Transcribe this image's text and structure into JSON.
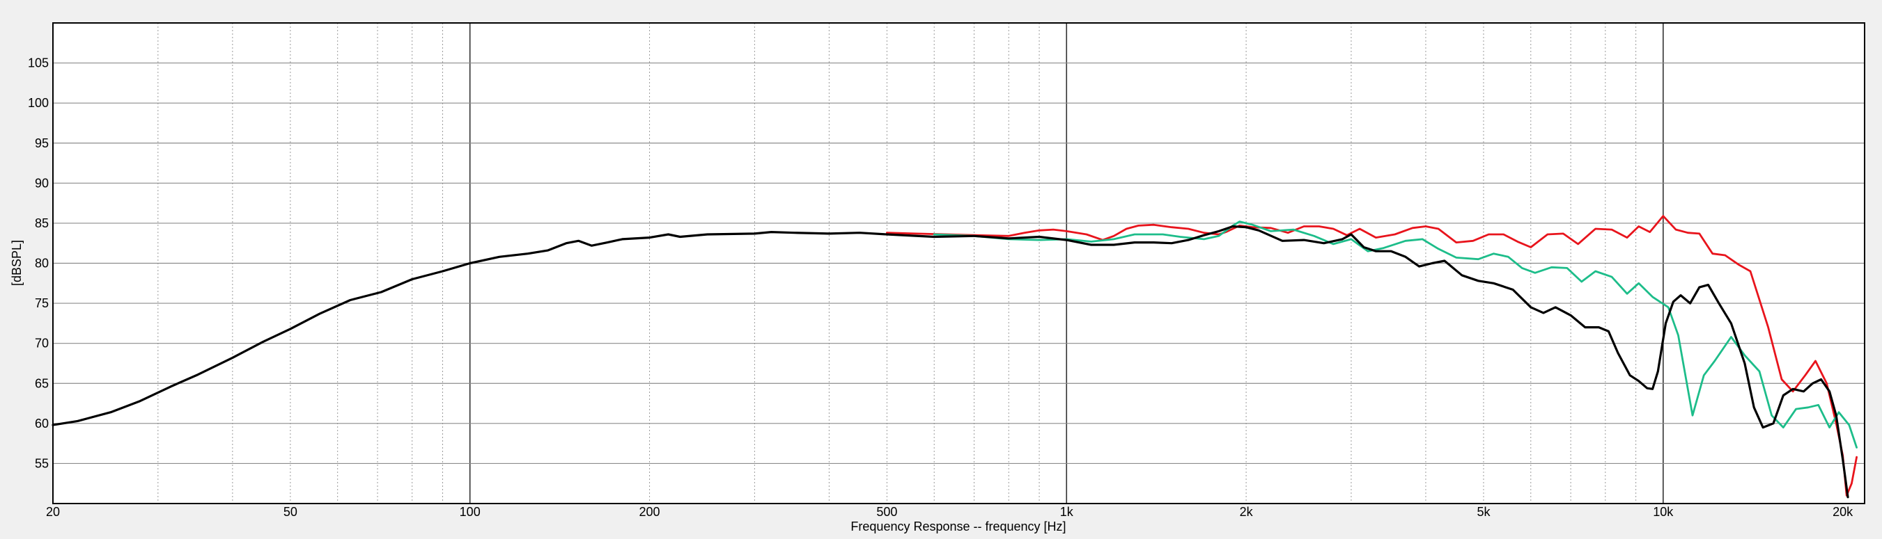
{
  "chart_data": {
    "type": "line",
    "title": "",
    "xlabel": "Frequency Response -- frequency [Hz]",
    "ylabel": "[dBSPL]",
    "x_scale": "log",
    "xlim": [
      20,
      20000
    ],
    "ylim": [
      50,
      110
    ],
    "x_ticks": [
      {
        "value": 20,
        "label": "20"
      },
      {
        "value": 50,
        "label": "50"
      },
      {
        "value": 100,
        "label": "100"
      },
      {
        "value": 200,
        "label": "200"
      },
      {
        "value": 500,
        "label": "500"
      },
      {
        "value": 1000,
        "label": "1k"
      },
      {
        "value": 2000,
        "label": "2k"
      },
      {
        "value": 5000,
        "label": "5k"
      },
      {
        "value": 10000,
        "label": "10k"
      },
      {
        "value": 20000,
        "label": "20k"
      }
    ],
    "y_ticks": [
      55,
      60,
      65,
      70,
      75,
      80,
      85,
      90,
      95,
      100,
      105
    ],
    "grid": true,
    "background": "#f0f0f0",
    "series": [
      {
        "color": "#e8141c",
        "points": [
          [
            500,
            83.8
          ],
          [
            560,
            83.7
          ],
          [
            630,
            83.6
          ],
          [
            700,
            83.5
          ],
          [
            800,
            83.4
          ],
          [
            850,
            83.8
          ],
          [
            900,
            84.1
          ],
          [
            950,
            84.2
          ],
          [
            1000,
            84.0
          ],
          [
            1080,
            83.6
          ],
          [
            1150,
            82.9
          ],
          [
            1200,
            83.4
          ],
          [
            1260,
            84.3
          ],
          [
            1320,
            84.7
          ],
          [
            1400,
            84.8
          ],
          [
            1500,
            84.5
          ],
          [
            1600,
            84.3
          ],
          [
            1700,
            83.8
          ],
          [
            1800,
            83.6
          ],
          [
            1850,
            83.9
          ],
          [
            1950,
            84.7
          ],
          [
            2050,
            84.5
          ],
          [
            2200,
            84.4
          ],
          [
            2350,
            83.8
          ],
          [
            2500,
            84.6
          ],
          [
            2650,
            84.6
          ],
          [
            2800,
            84.3
          ],
          [
            2950,
            83.5
          ],
          [
            3100,
            84.3
          ],
          [
            3300,
            83.2
          ],
          [
            3550,
            83.6
          ],
          [
            3800,
            84.4
          ],
          [
            4000,
            84.6
          ],
          [
            4200,
            84.3
          ],
          [
            4500,
            82.6
          ],
          [
            4800,
            82.8
          ],
          [
            5100,
            83.6
          ],
          [
            5400,
            83.6
          ],
          [
            5700,
            82.7
          ],
          [
            6000,
            82.0
          ],
          [
            6400,
            83.6
          ],
          [
            6800,
            83.7
          ],
          [
            7200,
            82.4
          ],
          [
            7700,
            84.3
          ],
          [
            8200,
            84.2
          ],
          [
            8700,
            83.2
          ],
          [
            9100,
            84.6
          ],
          [
            9500,
            83.9
          ],
          [
            10000,
            85.9
          ],
          [
            10500,
            84.2
          ],
          [
            11000,
            83.8
          ],
          [
            11500,
            83.7
          ],
          [
            12100,
            81.2
          ],
          [
            12700,
            81.0
          ],
          [
            13400,
            79.8
          ],
          [
            14000,
            79.0
          ],
          [
            15000,
            72.0
          ],
          [
            15800,
            65.5
          ],
          [
            16500,
            64.0
          ],
          [
            17300,
            66.0
          ],
          [
            18000,
            67.8
          ],
          [
            18800,
            65.0
          ],
          [
            19500,
            60.0
          ],
          [
            20000,
            56.0
          ],
          [
            20300,
            51.0
          ],
          [
            20700,
            52.5
          ],
          [
            21100,
            55.8
          ]
        ]
      },
      {
        "color": "#1dbd8a",
        "points": [
          [
            600,
            83.6
          ],
          [
            700,
            83.4
          ],
          [
            800,
            83.0
          ],
          [
            900,
            82.9
          ],
          [
            1000,
            83.0
          ],
          [
            1100,
            82.7
          ],
          [
            1200,
            83.0
          ],
          [
            1300,
            83.6
          ],
          [
            1450,
            83.6
          ],
          [
            1550,
            83.3
          ],
          [
            1700,
            83.0
          ],
          [
            1800,
            83.4
          ],
          [
            1900,
            84.7
          ],
          [
            1950,
            85.2
          ],
          [
            2050,
            84.8
          ],
          [
            2200,
            84.0
          ],
          [
            2400,
            84.2
          ],
          [
            2600,
            83.4
          ],
          [
            2800,
            82.4
          ],
          [
            3000,
            83.0
          ],
          [
            3200,
            81.5
          ],
          [
            3400,
            81.9
          ],
          [
            3700,
            82.8
          ],
          [
            3950,
            83.0
          ],
          [
            4200,
            81.8
          ],
          [
            4500,
            80.7
          ],
          [
            4900,
            80.5
          ],
          [
            5200,
            81.2
          ],
          [
            5500,
            80.8
          ],
          [
            5800,
            79.4
          ],
          [
            6100,
            78.8
          ],
          [
            6500,
            79.5
          ],
          [
            6900,
            79.4
          ],
          [
            7300,
            77.7
          ],
          [
            7700,
            79.0
          ],
          [
            8200,
            78.3
          ],
          [
            8700,
            76.2
          ],
          [
            9100,
            77.5
          ],
          [
            9600,
            75.8
          ],
          [
            10200,
            74.5
          ],
          [
            10600,
            71.0
          ],
          [
            11200,
            61.0
          ],
          [
            11700,
            66.0
          ],
          [
            12200,
            67.8
          ],
          [
            13000,
            70.8
          ],
          [
            13700,
            68.5
          ],
          [
            14500,
            66.5
          ],
          [
            15200,
            61.0
          ],
          [
            15900,
            59.5
          ],
          [
            16700,
            61.8
          ],
          [
            17500,
            62.0
          ],
          [
            18200,
            62.3
          ],
          [
            19000,
            59.5
          ],
          [
            19700,
            61.4
          ],
          [
            20500,
            59.8
          ],
          [
            21100,
            57.0
          ]
        ]
      },
      {
        "color": "#000000",
        "points": [
          [
            20,
            59.8
          ],
          [
            22,
            60.3
          ],
          [
            25,
            61.4
          ],
          [
            28,
            62.8
          ],
          [
            31.5,
            64.6
          ],
          [
            35,
            66.1
          ],
          [
            40,
            68.2
          ],
          [
            45,
            70.2
          ],
          [
            50,
            71.8
          ],
          [
            56,
            73.7
          ],
          [
            63,
            75.4
          ],
          [
            71,
            76.4
          ],
          [
            80,
            78.0
          ],
          [
            90,
            79.0
          ],
          [
            100,
            80.0
          ],
          [
            112,
            80.8
          ],
          [
            125,
            81.2
          ],
          [
            135,
            81.6
          ],
          [
            145,
            82.5
          ],
          [
            152,
            82.8
          ],
          [
            160,
            82.2
          ],
          [
            170,
            82.6
          ],
          [
            180,
            83.0
          ],
          [
            200,
            83.2
          ],
          [
            215,
            83.6
          ],
          [
            225,
            83.3
          ],
          [
            250,
            83.6
          ],
          [
            300,
            83.7
          ],
          [
            320,
            83.9
          ],
          [
            350,
            83.8
          ],
          [
            400,
            83.7
          ],
          [
            450,
            83.8
          ],
          [
            500,
            83.6
          ],
          [
            600,
            83.3
          ],
          [
            700,
            83.4
          ],
          [
            800,
            83.1
          ],
          [
            900,
            83.3
          ],
          [
            1000,
            82.9
          ],
          [
            1100,
            82.3
          ],
          [
            1200,
            82.3
          ],
          [
            1300,
            82.6
          ],
          [
            1400,
            82.6
          ],
          [
            1500,
            82.5
          ],
          [
            1600,
            82.9
          ],
          [
            1700,
            83.5
          ],
          [
            1800,
            84.0
          ],
          [
            1900,
            84.6
          ],
          [
            2000,
            84.5
          ],
          [
            2100,
            84.1
          ],
          [
            2300,
            82.8
          ],
          [
            2500,
            82.9
          ],
          [
            2700,
            82.5
          ],
          [
            2900,
            83.0
          ],
          [
            3000,
            83.6
          ],
          [
            3150,
            82.0
          ],
          [
            3300,
            81.5
          ],
          [
            3500,
            81.5
          ],
          [
            3700,
            80.8
          ],
          [
            3900,
            79.6
          ],
          [
            4100,
            80.0
          ],
          [
            4300,
            80.3
          ],
          [
            4600,
            78.5
          ],
          [
            4900,
            77.8
          ],
          [
            5200,
            77.5
          ],
          [
            5600,
            76.7
          ],
          [
            6000,
            74.5
          ],
          [
            6300,
            73.8
          ],
          [
            6600,
            74.5
          ],
          [
            7000,
            73.5
          ],
          [
            7400,
            72.0
          ],
          [
            7800,
            72.0
          ],
          [
            8100,
            71.5
          ],
          [
            8400,
            68.8
          ],
          [
            8800,
            66.0
          ],
          [
            9100,
            65.3
          ],
          [
            9400,
            64.4
          ],
          [
            9600,
            64.3
          ],
          [
            9800,
            66.5
          ],
          [
            10100,
            72.5
          ],
          [
            10400,
            75.2
          ],
          [
            10700,
            76.0
          ],
          [
            11100,
            75.0
          ],
          [
            11500,
            77.0
          ],
          [
            11900,
            77.3
          ],
          [
            12400,
            75.0
          ],
          [
            13000,
            72.5
          ],
          [
            13700,
            67.5
          ],
          [
            14200,
            62.0
          ],
          [
            14700,
            59.5
          ],
          [
            15300,
            60.0
          ],
          [
            15900,
            63.5
          ],
          [
            16500,
            64.3
          ],
          [
            17200,
            64.0
          ],
          [
            17800,
            65.0
          ],
          [
            18400,
            65.5
          ],
          [
            19000,
            64.0
          ],
          [
            19500,
            61.0
          ],
          [
            20000,
            55.5
          ],
          [
            20400,
            50.8
          ]
        ]
      }
    ]
  }
}
